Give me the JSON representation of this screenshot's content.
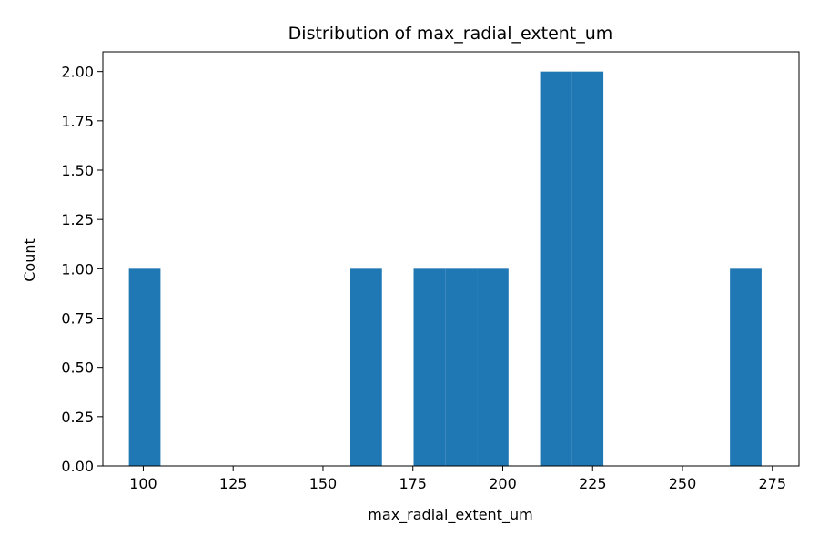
{
  "chart_data": {
    "type": "bar",
    "title": "Distribution of max_radial_extent_um",
    "xlabel": "max_radial_extent_um",
    "ylabel": "Count",
    "xlim": [
      88.75,
      282.4
    ],
    "ylim": [
      0,
      2.1
    ],
    "xticks": [
      100,
      125,
      150,
      175,
      200,
      225,
      250,
      275
    ],
    "yticks": [
      0.0,
      0.25,
      0.5,
      0.75,
      1.0,
      1.25,
      1.5,
      1.75,
      2.0
    ],
    "ytick_labels": [
      "0.00",
      "0.25",
      "0.50",
      "0.75",
      "1.00",
      "1.25",
      "1.50",
      "1.75",
      "2.00"
    ],
    "bin_edges": [
      96.0,
      104.8,
      113.6,
      122.4,
      131.2,
      140.0,
      148.8,
      157.6,
      166.4,
      175.2,
      184.0,
      192.8,
      201.6,
      210.4,
      219.2,
      228.0,
      236.8,
      245.6,
      254.4,
      263.2,
      272.0
    ],
    "counts": [
      1,
      0,
      0,
      0,
      0,
      0,
      0,
      1,
      0,
      1,
      1,
      1,
      0,
      2,
      2,
      0,
      0,
      0,
      0,
      1
    ],
    "bar_color": "#1f77b4",
    "grid": false,
    "legend": "none"
  }
}
